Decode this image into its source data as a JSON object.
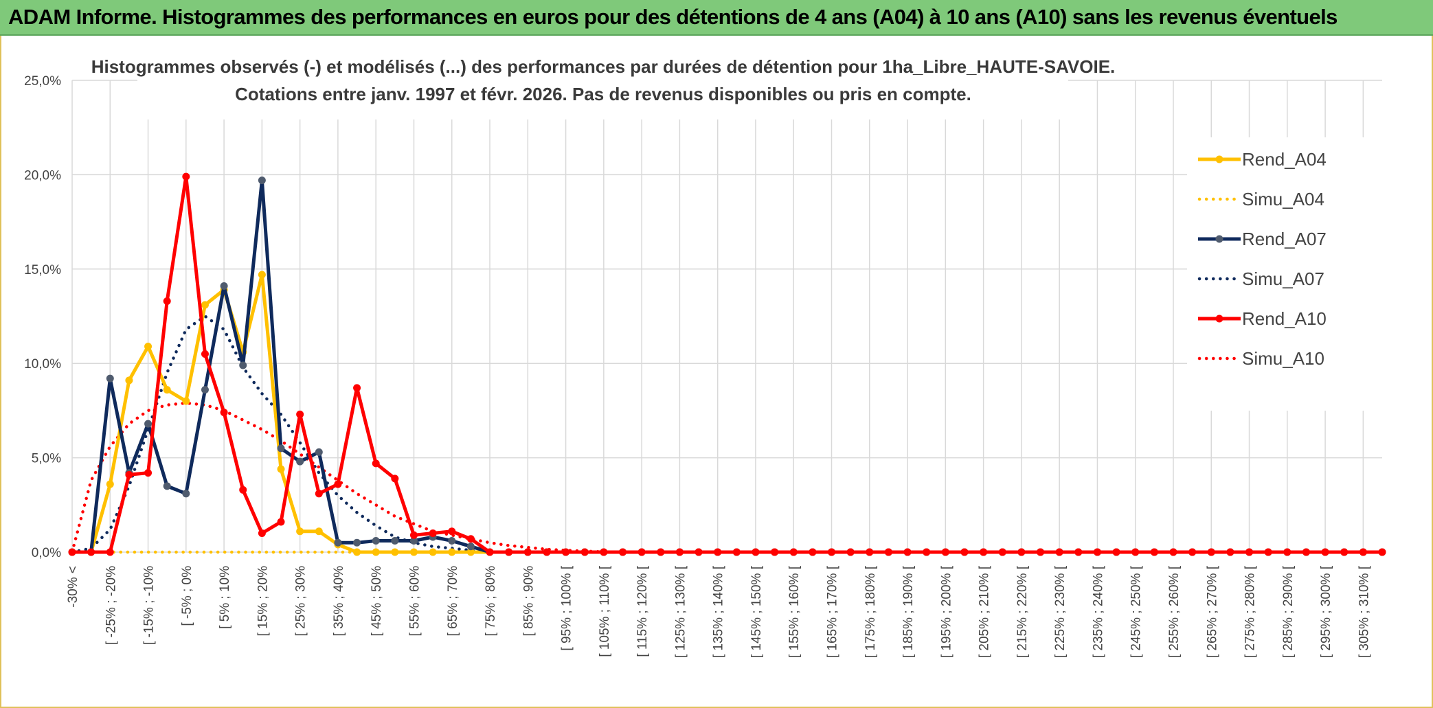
{
  "header": {
    "title": "ADAM Informe. Histogrammes des performances en euros pour des détentions de 4 ans (A04) à 10 ans (A10) sans les revenus éventuels"
  },
  "colors": {
    "banner": "#7fc97a",
    "A04": "#FFC000",
    "A07": "#0F2A5C",
    "A10": "#FF0000",
    "A07_marker": "#4F5B6E",
    "grid": "#D9D9D9"
  },
  "chart_data": {
    "type": "line",
    "title_line1": "Histogrammes observés (-) et modélisés (...) des performances par durées de détention pour 1ha_Libre_HAUTE-SAVOIE.",
    "title_line2": "Cotations entre janv. 1997 et févr. 2026. Pas de revenus disponibles ou pris en compte.",
    "ylim": [
      0,
      25
    ],
    "yticks": [
      "0,0%",
      "5,0%",
      "10,0%",
      "15,0%",
      "20,0%",
      "25,0%"
    ],
    "xtick_labels": [
      "-30% <",
      "[ -25% ; -20%",
      "[ -15% ; -10%",
      "[ -5% ; 0%",
      "[ 5% ; 10%",
      "[ 15% ; 20%",
      "[ 25% ; 30%",
      "[ 35% ; 40%",
      "[ 45% ; 50%",
      "[ 55% ; 60%",
      "[ 65% ; 70%",
      "[ 75% ; 80%",
      "[ 85% ; 90%",
      "[ 95% ; 100% [",
      "[ 105% ; 110% [",
      "[ 115% ; 120% [",
      "[ 125% ; 130% [",
      "[ 135% ; 140% [",
      "[ 145% ; 150% [",
      "[ 155% ; 160% [",
      "[ 165% ; 170% [",
      "[ 175% ; 180% [",
      "[ 185% ; 190% [",
      "[ 195% ; 200% [",
      "[ 205% ; 210% [",
      "[ 215% ; 220% [",
      "[ 225% ; 230% [",
      "[ 235% ; 240% [",
      "[ 245% ; 250% [",
      "[ 255% ; 260% [",
      "[ 265% ; 270% [",
      "[ 275% ; 280% [",
      "[ 285% ; 290% [",
      "[ 295% ; 300% [",
      "[ 305% ; 310% ["
    ],
    "n_bins": 70,
    "series": [
      {
        "name": "Rend_A04",
        "style": "solid",
        "color": "#FFC000",
        "values": [
          0,
          0,
          3.6,
          9.1,
          10.9,
          8.6,
          8.0,
          13.1,
          13.9,
          10.6,
          14.7,
          4.4,
          1.1,
          1.1,
          0.4,
          0,
          0,
          0,
          0,
          0,
          0,
          0,
          0,
          0,
          0,
          0,
          0,
          0,
          0,
          0,
          0,
          0,
          0,
          0,
          0,
          0,
          0,
          0,
          0,
          0,
          0,
          0,
          0,
          0,
          0,
          0,
          0,
          0,
          0,
          0,
          0,
          0,
          0,
          0,
          0,
          0,
          0,
          0,
          0,
          0,
          0,
          0,
          0,
          0,
          0,
          0,
          0,
          0,
          0,
          0
        ]
      },
      {
        "name": "Simu_A04",
        "style": "dotted",
        "color": "#FFC000",
        "values": [
          0,
          0,
          0,
          0,
          0,
          0,
          0,
          0,
          0,
          0,
          0,
          0,
          0,
          0,
          0,
          0,
          0,
          0,
          0,
          0,
          0,
          0,
          0,
          0,
          0,
          0,
          0,
          0,
          0,
          0,
          0,
          0,
          0,
          0,
          0,
          0,
          0,
          0,
          0,
          0,
          0,
          0,
          0,
          0,
          0,
          0,
          0,
          0,
          0,
          0,
          0,
          0,
          0,
          0,
          0,
          0,
          0,
          0,
          0,
          0,
          0,
          0,
          0,
          0,
          0,
          0,
          0,
          0,
          0,
          0
        ]
      },
      {
        "name": "Rend_A07",
        "style": "solid",
        "color": "#0F2A5C",
        "values": [
          0,
          0,
          9.2,
          4.2,
          6.8,
          3.5,
          3.1,
          8.6,
          14.1,
          9.9,
          19.7,
          5.5,
          4.8,
          5.3,
          0.5,
          0.5,
          0.6,
          0.6,
          0.6,
          0.8,
          0.6,
          0.3,
          0,
          0,
          0,
          0,
          0,
          0,
          0,
          0,
          0,
          0,
          0,
          0,
          0,
          0,
          0,
          0,
          0,
          0,
          0,
          0,
          0,
          0,
          0,
          0,
          0,
          0,
          0,
          0,
          0,
          0,
          0,
          0,
          0,
          0,
          0,
          0,
          0,
          0,
          0,
          0,
          0,
          0,
          0,
          0,
          0,
          0,
          0,
          0
        ]
      },
      {
        "name": "Simu_A07",
        "style": "dotted",
        "color": "#0F2A5C",
        "values": [
          0,
          0.2,
          1.2,
          3.5,
          6.5,
          9.5,
          11.8,
          12.5,
          11.8,
          9.8,
          8.4,
          7.3,
          5.8,
          4.2,
          3.0,
          2.1,
          1.4,
          0.8,
          0.5,
          0.3,
          0.2,
          0.1,
          0,
          0,
          0,
          0,
          0,
          0,
          0,
          0,
          0,
          0,
          0,
          0,
          0,
          0,
          0,
          0,
          0,
          0,
          0,
          0,
          0,
          0,
          0,
          0,
          0,
          0,
          0,
          0,
          0,
          0,
          0,
          0,
          0,
          0,
          0,
          0,
          0,
          0,
          0,
          0,
          0,
          0,
          0,
          0,
          0,
          0,
          0,
          0
        ]
      },
      {
        "name": "Rend_A10",
        "style": "solid",
        "color": "#FF0000",
        "values": [
          0,
          0,
          0,
          4.1,
          4.2,
          13.3,
          19.9,
          10.5,
          7.4,
          3.3,
          1.0,
          1.6,
          7.3,
          3.1,
          3.6,
          8.7,
          4.7,
          3.9,
          0.9,
          1.0,
          1.1,
          0.7,
          0,
          0,
          0,
          0,
          0,
          0,
          0,
          0,
          0,
          0,
          0,
          0,
          0,
          0,
          0,
          0,
          0,
          0,
          0,
          0,
          0,
          0,
          0,
          0,
          0,
          0,
          0,
          0,
          0,
          0,
          0,
          0,
          0,
          0,
          0,
          0,
          0,
          0,
          0,
          0,
          0,
          0,
          0,
          0,
          0,
          0,
          0,
          0
        ]
      },
      {
        "name": "Simu_A10",
        "style": "dotted",
        "color": "#FF0000",
        "values": [
          0,
          3.8,
          5.6,
          6.8,
          7.5,
          7.8,
          7.9,
          7.8,
          7.5,
          7.0,
          6.5,
          5.9,
          5.2,
          4.5,
          3.8,
          3.1,
          2.5,
          1.9,
          1.5,
          1.1,
          0.9,
          0.7,
          0.5,
          0.35,
          0.25,
          0.15,
          0.1,
          0.05,
          0.02,
          0,
          0,
          0,
          0,
          0,
          0,
          0,
          0,
          0,
          0,
          0,
          0,
          0,
          0,
          0,
          0,
          0,
          0,
          0,
          0,
          0,
          0,
          0,
          0,
          0,
          0,
          0,
          0,
          0,
          0,
          0,
          0,
          0,
          0,
          0,
          0,
          0,
          0,
          0,
          0,
          0
        ]
      }
    ],
    "legend": [
      "Rend_A04",
      "Simu_A04",
      "Rend_A07",
      "Simu_A07",
      "Rend_A10",
      "Simu_A10"
    ],
    "legend_position": "right"
  }
}
